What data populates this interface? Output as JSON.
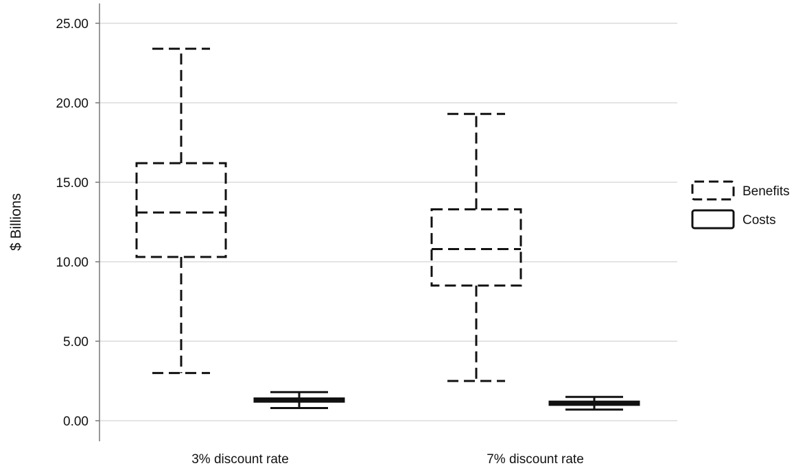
{
  "chart_data": {
    "type": "box",
    "title": "",
    "xlabel": "",
    "ylabel": "$ Billions",
    "ylim": [
      0,
      25
    ],
    "y_ticks": [
      "0.00",
      "5.00",
      "10.00",
      "15.00",
      "20.00",
      "25.00"
    ],
    "y_tick_values": [
      0,
      5,
      10,
      15,
      20,
      25
    ],
    "grid": "horizontal",
    "legend_position": "right",
    "categories": [
      "3% discount rate",
      "7% discount rate"
    ],
    "series": [
      {
        "name": "Benefits",
        "line_style": "dashed",
        "boxes": [
          {
            "min": 3.0,
            "q1": 10.3,
            "median": 13.1,
            "q3": 16.2,
            "max": 23.4
          },
          {
            "min": 2.5,
            "q1": 8.5,
            "median": 10.8,
            "q3": 13.3,
            "max": 19.3
          }
        ]
      },
      {
        "name": "Costs",
        "line_style": "solid",
        "boxes": [
          {
            "min": 0.8,
            "q1": 1.2,
            "median": 1.3,
            "q3": 1.4,
            "max": 1.8
          },
          {
            "min": 0.7,
            "q1": 1.0,
            "median": 1.1,
            "q3": 1.2,
            "max": 1.5
          }
        ]
      }
    ],
    "colors": {
      "stroke": "#111111",
      "grid": "#d4d4d4",
      "axis": "#777777"
    }
  }
}
